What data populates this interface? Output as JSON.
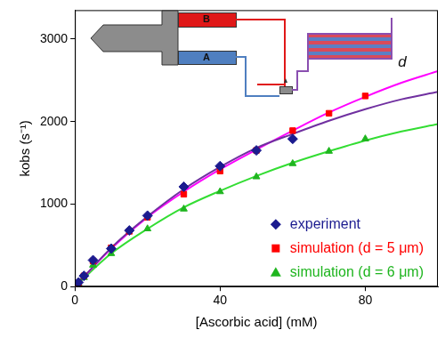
{
  "chart_data": {
    "type": "scatter",
    "x_label": "[Ascorbic acid] (mM)",
    "y_label": "kobs (s⁻¹)",
    "xlim": [
      0,
      100
    ],
    "xticks": [
      0,
      40,
      80
    ],
    "ylim": [
      0,
      3350
    ],
    "yticks": [
      0,
      1000,
      2000,
      3000
    ],
    "grid": false,
    "legend": "lower right",
    "annotations": [
      "B",
      "A",
      "d"
    ],
    "series": [
      {
        "name": "experiment",
        "type": "scatter",
        "marker": "diamond",
        "color": "#1b1b8f",
        "x": [
          1,
          2.5,
          5,
          10,
          15,
          20,
          30,
          40,
          50,
          60
        ],
        "values": [
          50,
          130,
          320,
          460,
          680,
          860,
          1210,
          1460,
          1650,
          1790
        ]
      },
      {
        "name": "simulation (d = 5 μm)",
        "type": "scatter",
        "marker": "square",
        "color": "#ff0000",
        "x": [
          1,
          2.5,
          5,
          10,
          15,
          20,
          30,
          40,
          50,
          60,
          70,
          80
        ],
        "values": [
          40,
          130,
          310,
          470,
          670,
          840,
          1120,
          1400,
          1650,
          1890,
          2100,
          2310
        ]
      },
      {
        "name": "simulation (d = 6 μm)",
        "type": "scatter",
        "marker": "triangle",
        "color": "#1fb51f",
        "x": [
          1,
          2.5,
          5,
          10,
          20,
          30,
          40,
          50,
          60,
          70,
          80
        ],
        "values": [
          40,
          110,
          260,
          400,
          700,
          940,
          1150,
          1330,
          1490,
          1640,
          1790
        ]
      },
      {
        "type": "line",
        "line_style": "solid",
        "color": "#7030a0",
        "x": [
          0,
          10,
          20,
          30,
          40,
          50,
          60,
          70,
          80,
          90,
          100
        ],
        "values": [
          0,
          470,
          850,
          1180,
          1450,
          1680,
          1850,
          2010,
          2150,
          2270,
          2360
        ]
      },
      {
        "type": "line",
        "line_style": "solid",
        "color": "#ff00ff",
        "x": [
          0,
          10,
          20,
          30,
          40,
          50,
          60,
          70,
          80,
          90,
          100
        ],
        "values": [
          0,
          460,
          840,
          1150,
          1420,
          1660,
          1890,
          2110,
          2300,
          2470,
          2610
        ]
      },
      {
        "type": "line",
        "line_style": "solid",
        "color": "#33dd33",
        "x": [
          0,
          10,
          20,
          30,
          40,
          50,
          60,
          70,
          80,
          90,
          100
        ],
        "values": [
          0,
          400,
          700,
          960,
          1160,
          1340,
          1500,
          1640,
          1770,
          1880,
          1970
        ]
      }
    ]
  }
}
